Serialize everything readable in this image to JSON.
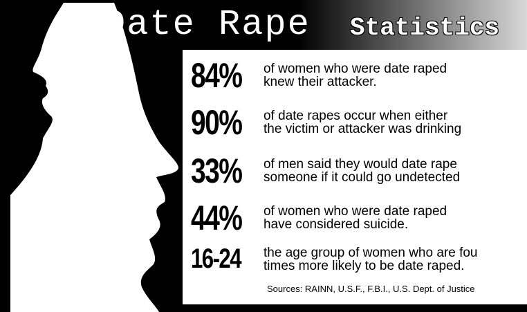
{
  "title": {
    "main": "Date Rape",
    "sub": "Statistics"
  },
  "stats": [
    {
      "figure": "84%",
      "lines": [
        "of women who were date raped",
        "knew their attacker."
      ]
    },
    {
      "figure": "90%",
      "lines": [
        "of date rapes occur when either",
        "the victim or attacker was drinking"
      ]
    },
    {
      "figure": "33%",
      "lines": [
        "of men said they would date rape",
        "someone if it could go undetected"
      ]
    },
    {
      "figure": "44%",
      "lines": [
        "of women who were date raped",
        "have considered suicide."
      ]
    },
    {
      "figure": "16-24",
      "lines": [
        "the age group of women who are fou",
        "times more likely to be date raped."
      ]
    }
  ],
  "sources": "Sources: RAINN, U.S.F., F.B.I., U.S. Dept. of Justice"
}
